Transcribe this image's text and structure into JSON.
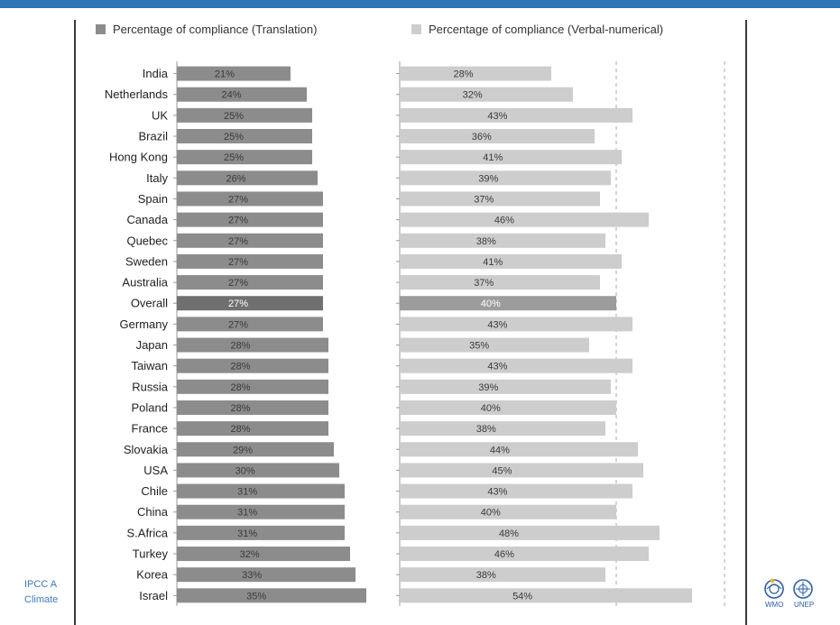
{
  "colors": {
    "top_bar": "#2e75b6",
    "translation": "#8c8c8c",
    "verbal": "#cdcdcd",
    "overall_translation": "#707070",
    "overall_verbal": "#9c9c9c",
    "footer_text": "#3b7bbf"
  },
  "footer": {
    "line1": "IPCC A",
    "line2": "Climate"
  },
  "logos": {
    "left_label": "WMO",
    "right_label": "UNEP"
  },
  "chart_data": {
    "type": "bar",
    "orientation": "horizontal",
    "categories": [
      "India",
      "Netherlands",
      "UK",
      "Brazil",
      "Hong Kong",
      "Italy",
      "Spain",
      "Canada",
      "Quebec",
      "Sweden",
      "Australia",
      "Overall",
      "Germany",
      "Japan",
      "Taiwan",
      "Russia",
      "Poland",
      "France",
      "Slovakia",
      "USA",
      "Chile",
      "China",
      "S.Africa",
      "Turkey",
      "Korea",
      "Israel"
    ],
    "highlight_category": "Overall",
    "series": [
      {
        "name": "Percentage of compliance (Translation)",
        "values": [
          21,
          24,
          25,
          25,
          25,
          26,
          27,
          27,
          27,
          27,
          27,
          27,
          27,
          28,
          28,
          28,
          28,
          28,
          29,
          30,
          31,
          31,
          31,
          32,
          33,
          35
        ],
        "labels": [
          "21%",
          "24%",
          "25%",
          "25%",
          "25%",
          "26%",
          "27%",
          "27%",
          "27%",
          "27%",
          "27%",
          "27%",
          "27%",
          "28%",
          "28%",
          "28%",
          "28%",
          "28%",
          "29%",
          "30%",
          "31%",
          "31%",
          "31%",
          "32%",
          "33%",
          "35%"
        ]
      },
      {
        "name": "Percentage of compliance (Verbal-numerical)",
        "values": [
          28,
          32,
          43,
          36,
          41,
          39,
          37,
          46,
          38,
          41,
          37,
          40,
          43,
          35,
          43,
          39,
          40,
          38,
          44,
          45,
          43,
          40,
          48,
          46,
          38,
          54
        ],
        "labels": [
          "28%",
          "32%",
          "43%",
          "36%",
          "41%",
          "39%",
          "37%",
          "46%",
          "38%",
          "41%",
          "37%",
          "40%",
          "43%",
          "35%",
          "43%",
          "39%",
          "40%",
          "38%",
          "44%",
          "45%",
          "43%",
          "40%",
          "48%",
          "46%",
          "38%",
          "54%"
        ]
      }
    ],
    "xlim": [
      0,
      60
    ],
    "legend_position": "top",
    "grid": "dashed vertical reference lines on right panel"
  }
}
